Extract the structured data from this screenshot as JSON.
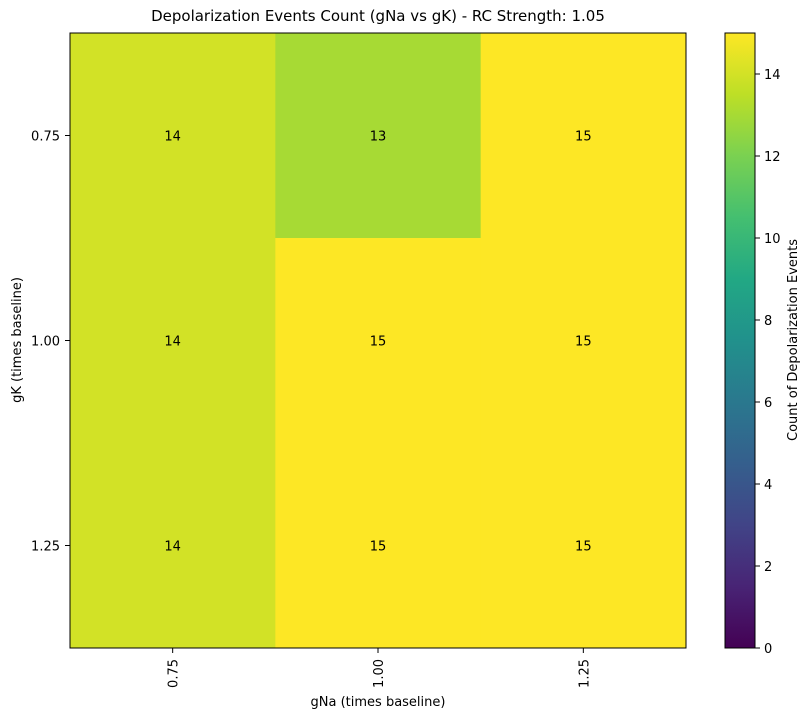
{
  "chart_data": {
    "type": "heatmap",
    "title": "Depolarization Events Count (gNa vs gK) - RC Strength: 1.05",
    "xlabel": "gNa (times baseline)",
    "ylabel": "gK (times baseline)",
    "x_categories": [
      "0.75",
      "1.00",
      "1.25"
    ],
    "y_categories": [
      "0.75",
      "1.00",
      "1.25"
    ],
    "values": [
      [
        14,
        13,
        15
      ],
      [
        14,
        15,
        15
      ],
      [
        14,
        15,
        15
      ]
    ],
    "colorbar": {
      "label": "Count of Depolarization Events",
      "min": 0,
      "max": 15,
      "ticks": [
        "0",
        "2",
        "4",
        "6",
        "8",
        "10",
        "12",
        "14"
      ],
      "colormap": "viridis"
    },
    "grid": false
  }
}
